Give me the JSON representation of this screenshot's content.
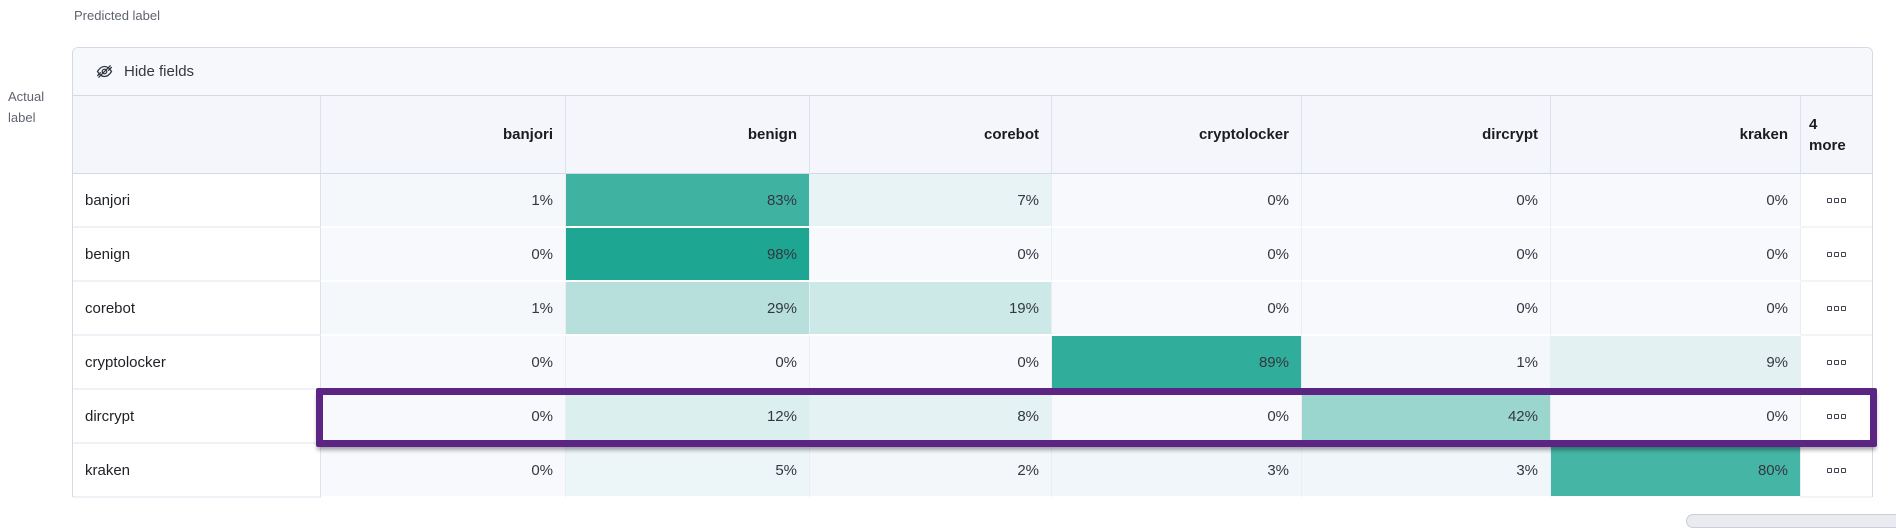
{
  "axes": {
    "predicted_label": "Predicted label",
    "actual_label": "Actual label"
  },
  "toolbar": {
    "hide_fields_label": "Hide fields"
  },
  "grid": {
    "columns": [
      "banjori",
      "benign",
      "corebot",
      "cryptolocker",
      "dircrypt",
      "kraken"
    ],
    "more_header_lines": [
      "4",
      "more"
    ],
    "value_suffix": "%",
    "rows": [
      {
        "label": "banjori",
        "values": [
          1,
          83,
          7,
          0,
          0,
          0
        ]
      },
      {
        "label": "benign",
        "values": [
          0,
          98,
          0,
          0,
          0,
          0
        ]
      },
      {
        "label": "corebot",
        "values": [
          1,
          29,
          19,
          0,
          0,
          0
        ]
      },
      {
        "label": "cryptolocker",
        "values": [
          0,
          0,
          0,
          89,
          1,
          9
        ]
      },
      {
        "label": "dircrypt",
        "values": [
          0,
          12,
          8,
          0,
          42,
          0
        ]
      },
      {
        "label": "kraken",
        "values": [
          0,
          5,
          2,
          3,
          3,
          80
        ]
      }
    ],
    "actions_icon": "boxes-horizontal-icon"
  },
  "highlight": {
    "row": "dircrypt",
    "border_color": "#5c2483"
  },
  "colors": {
    "heatmap_base": "#19a48f",
    "cell_zero_bg": "#f7f9fc",
    "header_bg": "#f4f6fb",
    "toolbar_bg": "#f7f8fc",
    "table_border": "#d3dae6",
    "highlight": "#5c2483"
  },
  "chart_data": {
    "type": "heatmap",
    "xlabel": "Predicted label",
    "ylabel": "Actual label",
    "x_categories": [
      "banjori",
      "benign",
      "corebot",
      "cryptolocker",
      "dircrypt",
      "kraken"
    ],
    "y_categories": [
      "banjori",
      "benign",
      "corebot",
      "cryptolocker",
      "dircrypt",
      "kraken"
    ],
    "values_percent": [
      [
        1,
        83,
        7,
        0,
        0,
        0
      ],
      [
        0,
        98,
        0,
        0,
        0,
        0
      ],
      [
        1,
        29,
        19,
        0,
        0,
        0
      ],
      [
        0,
        0,
        0,
        89,
        1,
        9
      ],
      [
        0,
        12,
        8,
        0,
        42,
        0
      ],
      [
        0,
        5,
        2,
        3,
        3,
        80
      ]
    ],
    "hidden_columns_count": 4,
    "highlighted_row": "dircrypt",
    "legend_position": "none",
    "grid_on": true
  }
}
